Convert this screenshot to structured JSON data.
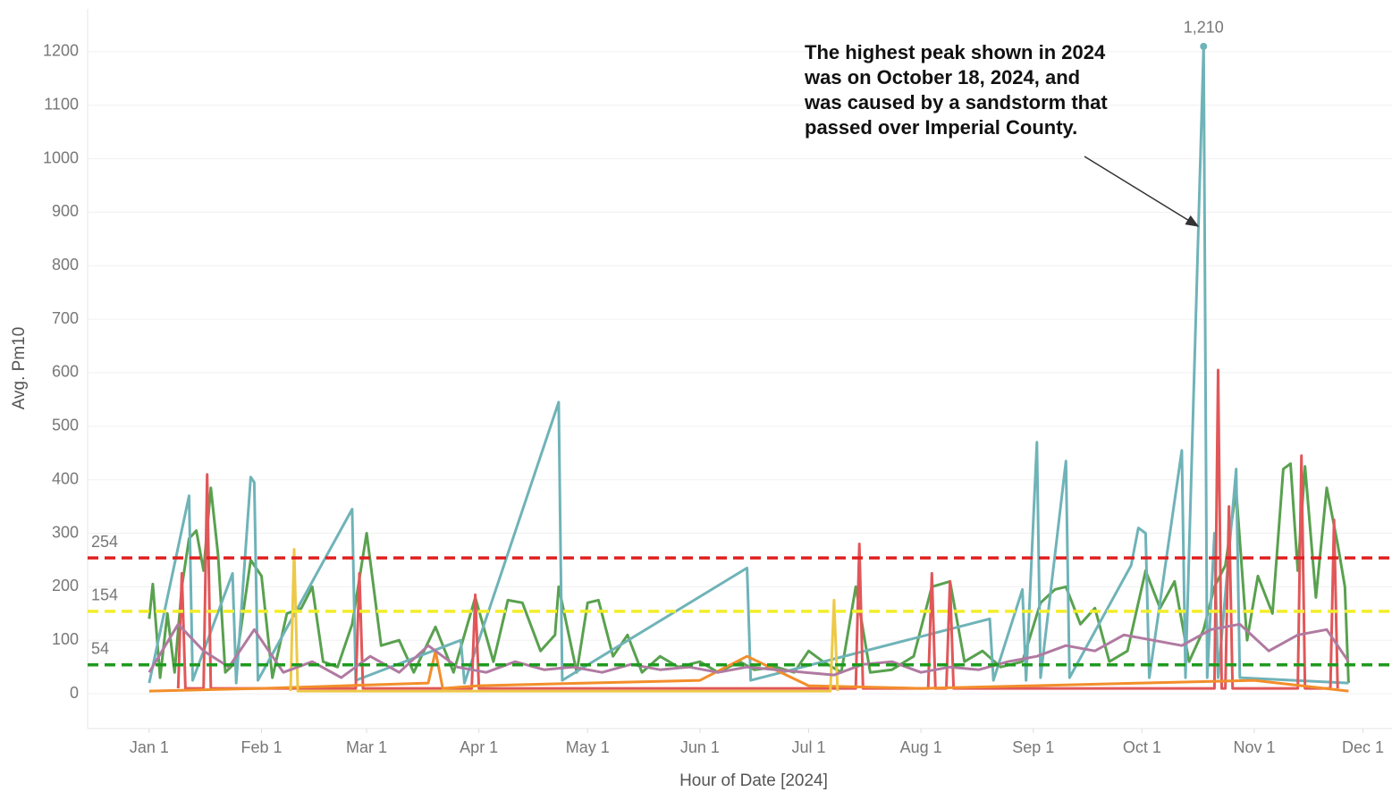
{
  "chart_data": {
    "type": "line",
    "y_label": "Avg. Pm10",
    "x_label": "Hour of Date [2024]",
    "annotation": [
      "The highest peak shown in 2024",
      "was on October 18, 2024, and",
      "was caused by a sandstorm that",
      "passed over Imperial County."
    ],
    "xlim": [
      "2023-12-15",
      "2024-12-09"
    ],
    "xticks": [
      {
        "value": "2024-01-01",
        "label": "Jan 1"
      },
      {
        "value": "2024-02-01",
        "label": "Feb 1"
      },
      {
        "value": "2024-03-01",
        "label": "Mar 1"
      },
      {
        "value": "2024-04-01",
        "label": "Apr 1"
      },
      {
        "value": "2024-05-01",
        "label": "May 1"
      },
      {
        "value": "2024-06-01",
        "label": "Jun 1"
      },
      {
        "value": "2024-07-01",
        "label": "Jul 1"
      },
      {
        "value": "2024-08-01",
        "label": "Aug 1"
      },
      {
        "value": "2024-09-01",
        "label": "Sep 1"
      },
      {
        "value": "2024-10-01",
        "label": "Oct 1"
      },
      {
        "value": "2024-11-01",
        "label": "Nov 1"
      },
      {
        "value": "2024-12-01",
        "label": "Dec 1"
      }
    ],
    "ylim": [
      -65,
      1280
    ],
    "yticks": [
      0,
      100,
      200,
      300,
      400,
      500,
      600,
      700,
      800,
      900,
      1000,
      1100,
      1200
    ],
    "grid": true,
    "reference_lines": [
      {
        "value": 254,
        "color": "#e02020"
      },
      {
        "value": 154,
        "color": "#f2ee2a"
      },
      {
        "value": 54,
        "color": "#1e9a1e"
      }
    ],
    "series": [
      {
        "color": "#59a14f",
        "x": [
          "2024-01-01",
          "2024-01-02",
          "2024-01-04",
          "2024-01-06",
          "2024-01-08",
          "2024-01-10",
          "2024-01-12",
          "2024-01-14",
          "2024-01-16",
          "2024-01-18",
          "2024-01-20",
          "2024-01-22",
          "2024-01-25",
          "2024-01-29",
          "2024-02-01",
          "2024-02-04",
          "2024-02-08",
          "2024-02-12",
          "2024-02-15",
          "2024-02-18",
          "2024-02-22",
          "2024-02-26",
          "2024-03-01",
          "2024-03-05",
          "2024-03-10",
          "2024-03-14",
          "2024-03-20",
          "2024-03-25",
          "2024-03-31",
          "2024-04-05",
          "2024-04-09",
          "2024-04-13",
          "2024-04-18",
          "2024-04-22",
          "2024-04-23",
          "2024-04-28",
          "2024-05-01",
          "2024-05-04",
          "2024-05-08",
          "2024-05-12",
          "2024-05-16",
          "2024-05-21",
          "2024-05-26",
          "2024-06-01",
          "2024-06-06",
          "2024-06-12",
          "2024-06-16",
          "2024-06-22",
          "2024-06-27",
          "2024-07-01",
          "2024-07-05",
          "2024-07-10",
          "2024-07-14",
          "2024-07-18",
          "2024-07-24",
          "2024-07-30",
          "2024-08-04",
          "2024-08-09",
          "2024-08-13",
          "2024-08-18",
          "2024-08-23",
          "2024-08-29",
          "2024-09-03",
          "2024-09-07",
          "2024-09-10",
          "2024-09-14",
          "2024-09-18",
          "2024-09-22",
          "2024-09-27",
          "2024-10-02",
          "2024-10-06",
          "2024-10-10",
          "2024-10-14",
          "2024-10-18",
          "2024-10-21",
          "2024-10-24",
          "2024-10-27",
          "2024-10-30",
          "2024-11-02",
          "2024-11-06",
          "2024-11-09",
          "2024-11-11",
          "2024-11-13",
          "2024-11-15",
          "2024-11-18",
          "2024-11-21",
          "2024-11-24",
          "2024-11-26",
          "2024-11-27"
        ],
        "values": [
          140,
          205,
          30,
          150,
          40,
          200,
          290,
          305,
          230,
          385,
          260,
          40,
          60,
          250,
          220,
          30,
          150,
          160,
          200,
          60,
          50,
          130,
          300,
          90,
          100,
          40,
          125,
          40,
          180,
          60,
          175,
          170,
          80,
          110,
          200,
          40,
          170,
          175,
          70,
          110,
          40,
          70,
          50,
          60,
          40,
          60,
          45,
          50,
          40,
          80,
          60,
          40,
          200,
          40,
          45,
          70,
          200,
          210,
          60,
          80,
          50,
          60,
          170,
          195,
          200,
          130,
          160,
          60,
          80,
          230,
          160,
          210,
          60,
          120,
          200,
          240,
          380,
          100,
          220,
          150,
          420,
          430,
          230,
          425,
          180,
          385,
          280,
          200,
          20
        ]
      },
      {
        "color": "#6fb3b8",
        "x": [
          "2024-01-01",
          "2024-01-12",
          "2024-01-13",
          "2024-01-24",
          "2024-01-25",
          "2024-01-29",
          "2024-01-30",
          "2024-01-31",
          "2024-02-26",
          "2024-02-27",
          "2024-03-27",
          "2024-03-28",
          "2024-04-23",
          "2024-04-24",
          "2024-06-14",
          "2024-06-15",
          "2024-08-20",
          "2024-08-21",
          "2024-08-29",
          "2024-08-30",
          "2024-09-02",
          "2024-09-03",
          "2024-09-10",
          "2024-09-11",
          "2024-09-28",
          "2024-09-30",
          "2024-10-02",
          "2024-10-03",
          "2024-10-12",
          "2024-10-13",
          "2024-10-18",
          "2024-10-19",
          "2024-10-21",
          "2024-10-22",
          "2024-10-27",
          "2024-10-28",
          "2024-11-27"
        ],
        "values": [
          20,
          370,
          25,
          225,
          20,
          405,
          395,
          25,
          345,
          25,
          100,
          20,
          545,
          25,
          235,
          25,
          140,
          25,
          195,
          25,
          470,
          30,
          435,
          30,
          240,
          310,
          300,
          30,
          455,
          30,
          1210,
          30,
          300,
          30,
          420,
          30,
          20
        ],
        "value_labels": [
          null,
          null,
          null,
          null,
          null,
          null,
          null,
          null,
          null,
          null,
          null,
          null,
          null,
          null,
          null,
          null,
          null,
          null,
          null,
          null,
          null,
          null,
          null,
          null,
          null,
          null,
          null,
          null,
          null,
          null,
          "1,210",
          null,
          null,
          null,
          null,
          null,
          null
        ]
      },
      {
        "color": "#e15759",
        "x": [
          "2024-01-09",
          "2024-01-10",
          "2024-01-11",
          "2024-01-16",
          "2024-01-17",
          "2024-01-18",
          "2024-02-27",
          "2024-02-28",
          "2024-02-29",
          "2024-03-30",
          "2024-03-31",
          "2024-04-01",
          "2024-07-14",
          "2024-07-15",
          "2024-07-16",
          "2024-08-03",
          "2024-08-04",
          "2024-08-05",
          "2024-08-08",
          "2024-08-09",
          "2024-08-10",
          "2024-10-21",
          "2024-10-22",
          "2024-10-23",
          "2024-10-24",
          "2024-10-25",
          "2024-10-26",
          "2024-11-13",
          "2024-11-14",
          "2024-11-15",
          "2024-11-22",
          "2024-11-23",
          "2024-11-24"
        ],
        "values": [
          10,
          225,
          10,
          10,
          410,
          10,
          10,
          225,
          10,
          10,
          185,
          10,
          10,
          280,
          10,
          10,
          225,
          10,
          10,
          210,
          10,
          10,
          605,
          10,
          10,
          350,
          10,
          10,
          445,
          10,
          10,
          325,
          10
        ]
      },
      {
        "color": "#f28e2b",
        "x": [
          "2024-01-01",
          "2024-02-01",
          "2024-03-18",
          "2024-03-20",
          "2024-03-22",
          "2024-04-01",
          "2024-05-01",
          "2024-06-01",
          "2024-06-14",
          "2024-07-01",
          "2024-08-01",
          "2024-09-01",
          "2024-10-01",
          "2024-11-01",
          "2024-11-27"
        ],
        "values": [
          5,
          10,
          20,
          80,
          10,
          15,
          20,
          25,
          70,
          15,
          10,
          15,
          20,
          25,
          5
        ]
      },
      {
        "color": "#edc948",
        "x": [
          "2024-02-09",
          "2024-02-10",
          "2024-02-11",
          "2024-07-07",
          "2024-07-08",
          "2024-07-09"
        ],
        "values": [
          5,
          270,
          5,
          5,
          175,
          5
        ]
      },
      {
        "color": "#b07aa1",
        "x": [
          "2024-01-01",
          "2024-01-09",
          "2024-01-16",
          "2024-01-23",
          "2024-01-30",
          "2024-02-07",
          "2024-02-15",
          "2024-02-23",
          "2024-03-02",
          "2024-03-10",
          "2024-03-18",
          "2024-03-26",
          "2024-04-03",
          "2024-04-11",
          "2024-04-19",
          "2024-04-27",
          "2024-05-05",
          "2024-05-13",
          "2024-05-21",
          "2024-05-29",
          "2024-06-06",
          "2024-06-14",
          "2024-06-22",
          "2024-06-30",
          "2024-07-08",
          "2024-07-16",
          "2024-07-24",
          "2024-08-01",
          "2024-08-09",
          "2024-08-17",
          "2024-08-25",
          "2024-09-02",
          "2024-09-10",
          "2024-09-18",
          "2024-09-26",
          "2024-10-04",
          "2024-10-12",
          "2024-10-20",
          "2024-10-28",
          "2024-11-05",
          "2024-11-13",
          "2024-11-21",
          "2024-11-27"
        ],
        "values": [
          40,
          130,
          80,
          50,
          120,
          40,
          60,
          30,
          70,
          40,
          90,
          50,
          40,
          60,
          45,
          50,
          40,
          55,
          45,
          50,
          40,
          50,
          45,
          40,
          35,
          55,
          60,
          40,
          50,
          45,
          60,
          70,
          90,
          80,
          110,
          100,
          90,
          120,
          130,
          80,
          110,
          120,
          60
        ]
      }
    ]
  }
}
